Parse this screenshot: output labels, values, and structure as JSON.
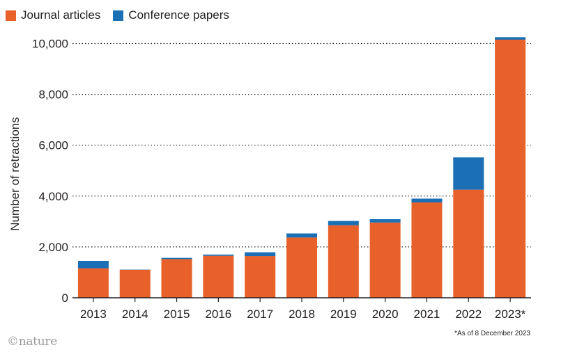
{
  "legend": {
    "items": [
      {
        "label": "Journal articles",
        "color": "#e8602a"
      },
      {
        "label": "Conference papers",
        "color": "#1a6fb5"
      }
    ]
  },
  "brand": "©nature",
  "footnote": "*As of 8 December 2023",
  "chart_data": {
    "type": "bar",
    "stacked": true,
    "categories": [
      "2013",
      "2014",
      "2015",
      "2016",
      "2017",
      "2018",
      "2019",
      "2020",
      "2021",
      "2022",
      "2023*"
    ],
    "series": [
      {
        "name": "Journal articles",
        "color": "#e8602a",
        "values": [
          1160,
          1100,
          1520,
          1650,
          1640,
          2370,
          2850,
          2960,
          3750,
          4250,
          10150
        ]
      },
      {
        "name": "Conference papers",
        "color": "#1a6fb5",
        "values": [
          290,
          10,
          50,
          50,
          150,
          160,
          170,
          130,
          150,
          1270,
          100
        ]
      }
    ],
    "ylabel": "Number of retractions",
    "xlabel": "",
    "ylim": [
      0,
      10000
    ],
    "yticks": [
      0,
      2000,
      4000,
      6000,
      8000,
      10000
    ],
    "ytick_labels": [
      "0",
      "2,000",
      "4,000",
      "6,000",
      "8,000",
      "10,000"
    ],
    "grid": "horizontal dotted"
  }
}
